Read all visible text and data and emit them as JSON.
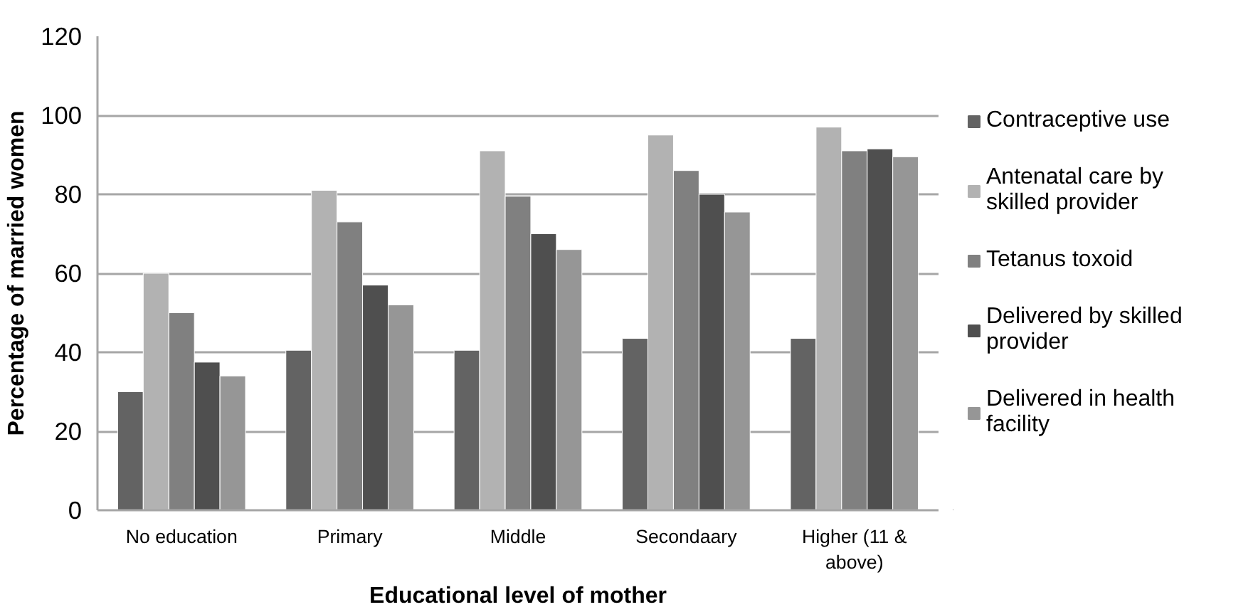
{
  "chart_data": {
    "type": "bar",
    "xlabel": "Educational level of mother",
    "ylabel": "Percentage of married women",
    "categories": [
      "No education",
      "Primary",
      "Middle",
      "Secondaary",
      "Higher (11 & above)"
    ],
    "series": [
      {
        "name": "Contraceptive use",
        "color": "#636363",
        "values": [
          30,
          40.5,
          40.5,
          43.5,
          43.5
        ]
      },
      {
        "name": "Antenatal care by skilled provider",
        "color": "#b2b2b2",
        "values": [
          60,
          81,
          91,
          95,
          97
        ]
      },
      {
        "name": "Tetanus toxoid",
        "color": "#808080",
        "values": [
          50,
          73,
          79.5,
          86,
          91
        ]
      },
      {
        "name": "Delivered by skilled provider",
        "color": "#4f4f4f",
        "values": [
          37.5,
          57,
          70,
          80,
          91.5
        ]
      },
      {
        "name": "Delivered in health facility",
        "color": "#969696",
        "values": [
          34,
          52,
          66,
          75.5,
          89.5
        ]
      }
    ],
    "ylim": [
      0,
      120
    ],
    "yticks": [
      0,
      20,
      40,
      60,
      80,
      100,
      120
    ],
    "grid": "y",
    "legend": "right"
  }
}
